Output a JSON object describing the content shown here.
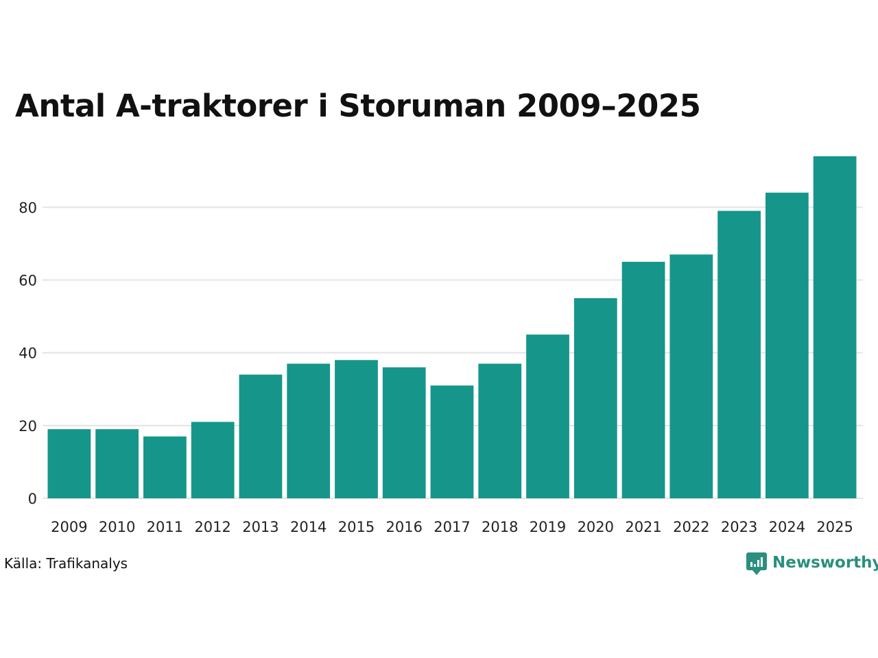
{
  "chart_data": {
    "type": "bar",
    "title": "Antal A-traktorer i Storuman 2009–2025",
    "xlabel": "",
    "ylabel": "",
    "categories": [
      "2009",
      "2010",
      "2011",
      "2012",
      "2013",
      "2014",
      "2015",
      "2016",
      "2017",
      "2018",
      "2019",
      "2020",
      "2021",
      "2022",
      "2023",
      "2024",
      "2025"
    ],
    "values": [
      19,
      19,
      17,
      21,
      34,
      37,
      38,
      36,
      31,
      37,
      45,
      55,
      65,
      67,
      79,
      84,
      94
    ],
    "ylim": [
      0,
      94
    ],
    "yticks": [
      0,
      20,
      40,
      60,
      80
    ],
    "grid": true,
    "legend": "none",
    "bar_color": "#16968a",
    "grid_color": "#e3e3e3"
  },
  "footer": {
    "source": "Källa: Trafikanalys",
    "brand": "Newsworthy",
    "brand_color": "#2a8f7e",
    "brand_icon": "bar-chart-speech-bubble-icon"
  }
}
